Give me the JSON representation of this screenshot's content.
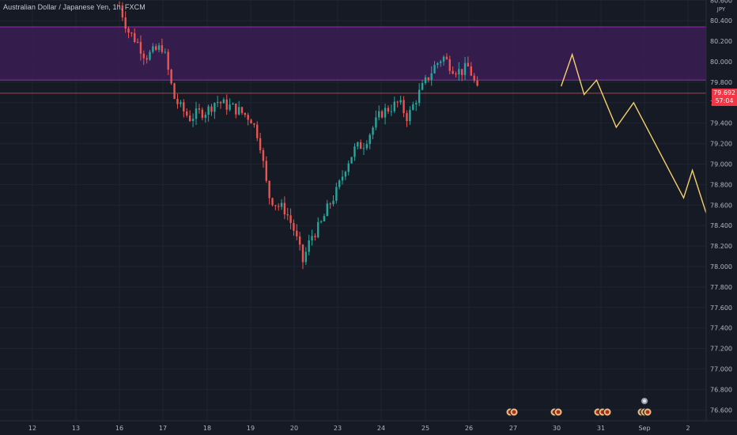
{
  "header": {
    "symbol": "Australian Dollar / Japanese Yen, 1h, FXCM"
  },
  "price_axis": {
    "currency": "JPY"
  },
  "last_price": {
    "value": "79.692",
    "countdown": "57:04"
  },
  "colors": {
    "background": "#161a25",
    "zone_fill": "#3a1e55",
    "zone_border": "#9c27b0",
    "up_candle": "#26a69a",
    "down_candle": "#ef5350",
    "projection": "#f5d06a",
    "price_label_bg": "#f23645"
  },
  "chart_data": {
    "type": "candlestick",
    "y_axis_labels": [
      "80.600",
      "80.400",
      "80.200",
      "80.000",
      "79.800",
      "79.600",
      "79.400",
      "79.200",
      "79.000",
      "78.800",
      "78.600",
      "78.400",
      "78.200",
      "78.000",
      "77.800",
      "77.600",
      "77.400",
      "77.200",
      "77.000",
      "76.800",
      "76.600"
    ],
    "x_axis_labels": [
      "12",
      "13",
      "16",
      "17",
      "18",
      "19",
      "20",
      "23",
      "24",
      "25",
      "26",
      "27",
      "30",
      "31",
      "Sep",
      "2"
    ],
    "ylim": [
      76.55,
      80.68
    ],
    "resistance_zone": [
      79.82,
      80.34
    ],
    "last_price_line": 79.692,
    "price_path": [
      [
        16.0,
        80.55
      ],
      [
        16.2,
        80.3
      ],
      [
        16.4,
        80.2
      ],
      [
        16.6,
        80.05
      ],
      [
        16.8,
        80.1
      ],
      [
        17.0,
        80.15
      ],
      [
        17.1,
        79.95
      ],
      [
        17.25,
        79.65
      ],
      [
        17.4,
        79.55
      ],
      [
        17.6,
        79.45
      ],
      [
        17.8,
        79.5
      ],
      [
        18.0,
        79.52
      ],
      [
        18.2,
        79.62
      ],
      [
        18.4,
        79.58
      ],
      [
        18.6,
        79.55
      ],
      [
        18.8,
        79.5
      ],
      [
        19.0,
        79.45
      ],
      [
        19.2,
        79.25
      ],
      [
        19.4,
        78.7
      ],
      [
        19.6,
        78.6
      ],
      [
        19.8,
        78.55
      ],
      [
        20.0,
        78.35
      ],
      [
        20.2,
        78.05
      ],
      [
        20.4,
        78.3
      ],
      [
        20.6,
        78.4
      ],
      [
        20.8,
        78.6
      ],
      [
        21.0,
        78.75
      ],
      [
        21.2,
        79.0
      ],
      [
        21.4,
        79.15
      ],
      [
        21.6,
        79.2
      ],
      [
        21.8,
        79.35
      ],
      [
        22.0,
        79.5
      ],
      [
        22.2,
        79.55
      ],
      [
        22.4,
        79.6
      ],
      [
        22.6,
        79.45
      ],
      [
        22.8,
        79.65
      ],
      [
        23.0,
        79.8
      ],
      [
        23.2,
        79.95
      ],
      [
        23.4,
        80.05
      ],
      [
        23.6,
        79.95
      ],
      [
        23.8,
        79.9
      ],
      [
        24.0,
        79.95
      ],
      [
        24.2,
        79.7
      ]
    ],
    "projection": [
      [
        26.1,
        79.76
      ],
      [
        26.35,
        80.07
      ],
      [
        26.62,
        79.68
      ],
      [
        26.9,
        79.82
      ],
      [
        27.35,
        79.36
      ],
      [
        27.75,
        79.6
      ],
      [
        28.9,
        78.67
      ],
      [
        29.1,
        78.94
      ],
      [
        29.85,
        77.94
      ],
      [
        29.95,
        78.03
      ],
      [
        29.8,
        77.93
      ]
    ],
    "event_markers": [
      "27",
      "30",
      "31",
      "Sep"
    ]
  }
}
